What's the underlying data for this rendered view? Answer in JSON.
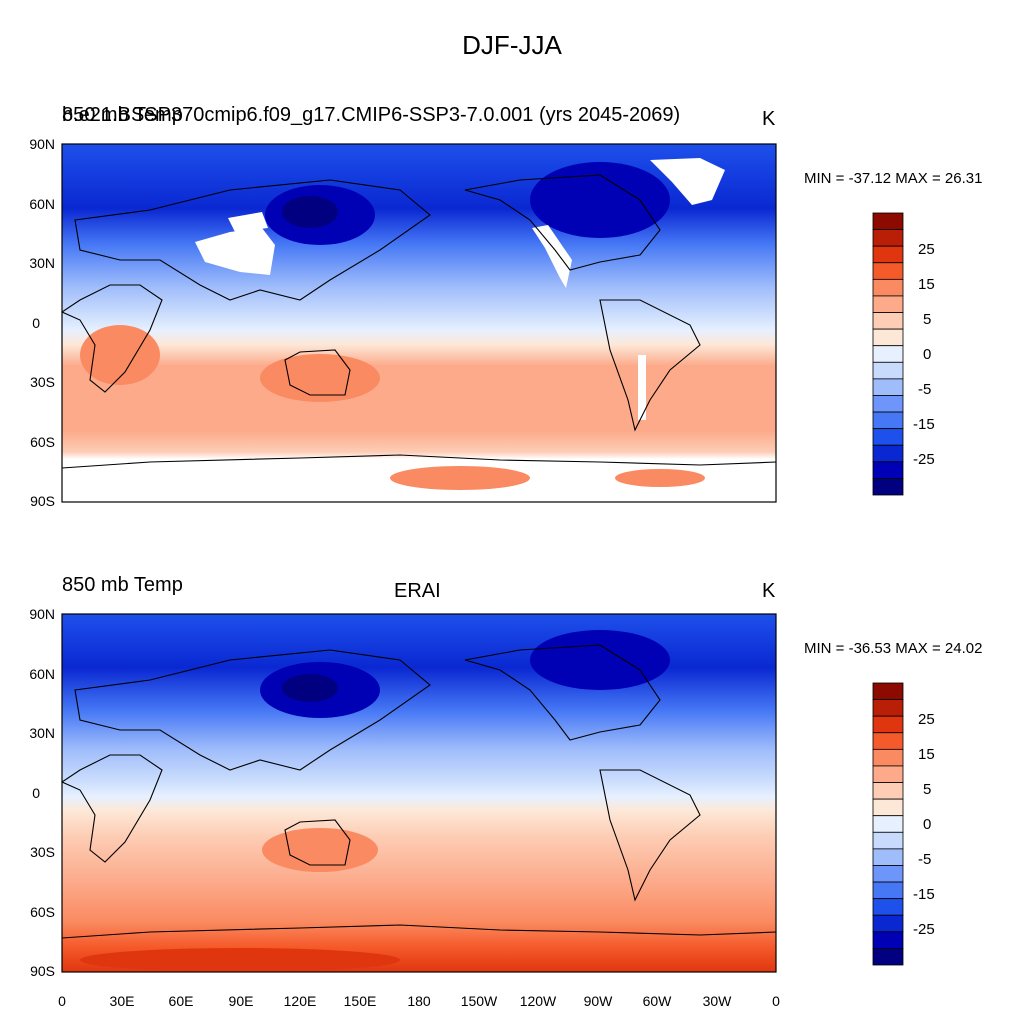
{
  "title": "DJF-JJA",
  "colorbar": {
    "colors": [
      "#000080",
      "#0000b4",
      "#0a28d2",
      "#1e50eb",
      "#4678f5",
      "#6e96fa",
      "#a0bdfb",
      "#c8dbfd",
      "#e6f0ff",
      "#fde8d8",
      "#fdcdb5",
      "#fcaa8a",
      "#fa8a61",
      "#f55a2a",
      "#e0360f",
      "#b91e06",
      "#8c0a00"
    ],
    "labels": [
      "25",
      "15",
      "5",
      "0",
      "-5",
      "-15",
      "-25"
    ]
  },
  "axes": {
    "lat_labels": [
      "90N",
      "60N",
      "30N",
      "0",
      "30S",
      "60S",
      "90S"
    ],
    "lon_labels": [
      "0",
      "30E",
      "60E",
      "90E",
      "120E",
      "150E",
      "180",
      "150W",
      "120W",
      "90W",
      "60W",
      "30W",
      "0"
    ]
  },
  "panels": [
    {
      "left_title": "850 mb Temp",
      "center_title": "b.e21.BSSP370cmip6.f09_g17.CMIP6-SSP3-7.0.001 (yrs 2045-2069)",
      "units": "K",
      "minmax": "MIN = -37.12 MAX =  26.31"
    },
    {
      "left_title": "850 mb Temp",
      "center_title": "ERAI",
      "units": "K",
      "minmax": "MIN = -36.53 MAX =  24.02"
    }
  ]
}
